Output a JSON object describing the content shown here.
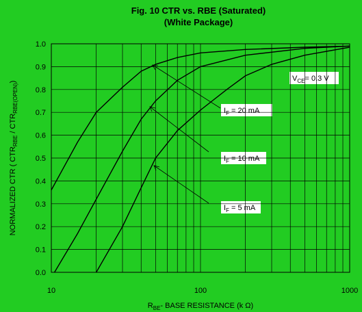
{
  "chart_data": {
    "type": "line",
    "title": [
      "Fig. 10  CTR vs. RBE (Saturated)",
      "(White Package)"
    ],
    "xlabel": [
      "R",
      "BE",
      "- BASE RESISTANCE (k Ω)"
    ],
    "ylabel": [
      "NORMALIZED CTR ( CTR",
      "RBE",
      " / CTR",
      "RBE(OPEN)",
      ")"
    ],
    "xscale": "log",
    "xlim": [
      10,
      1000
    ],
    "xticks": [
      10,
      100,
      1000
    ],
    "xminor": [
      20,
      30,
      40,
      50,
      60,
      70,
      80,
      90,
      200,
      300,
      400,
      500,
      600,
      700,
      800,
      900
    ],
    "ylim": [
      0,
      1
    ],
    "yticks": [
      {
        "value": 0,
        "label": "0.0"
      },
      0.1,
      0.2,
      0.3,
      0.4,
      0.5,
      0.6,
      0.7,
      0.8,
      0.9,
      {
        "value": 1,
        "label": "1.0"
      }
    ],
    "grid": true,
    "series": [
      {
        "color": "#000000",
        "x": [
          10,
          15,
          20,
          30,
          40,
          50,
          70,
          100,
          200,
          500,
          1000
        ],
        "values": [
          0.36,
          0.57,
          0.7,
          0.81,
          0.88,
          0.91,
          0.94,
          0.96,
          0.975,
          0.985,
          0.99
        ]
      },
      {
        "color": "#000000",
        "x": [
          10.5,
          15,
          20,
          30,
          40,
          50,
          70,
          100,
          200,
          500,
          1000
        ],
        "values": [
          0,
          0.17,
          0.32,
          0.53,
          0.67,
          0.75,
          0.84,
          0.9,
          0.95,
          0.98,
          0.99
        ]
      },
      {
        "color": "#000000",
        "x": [
          20,
          30,
          40,
          50,
          70,
          100,
          150,
          200,
          300,
          500,
          1000
        ],
        "values": [
          0,
          0.2,
          0.37,
          0.5,
          0.62,
          0.71,
          0.8,
          0.86,
          0.91,
          0.95,
          0.985
        ]
      }
    ],
    "annotations": [
      [
        "V",
        "CE",
        "= 0.3 V"
      ],
      [
        "I",
        "F",
        "  = 20 mA"
      ],
      [
        "I",
        "F",
        "  = 10 mA"
      ],
      [
        "I",
        "F",
        "  = 5 mA"
      ]
    ]
  }
}
